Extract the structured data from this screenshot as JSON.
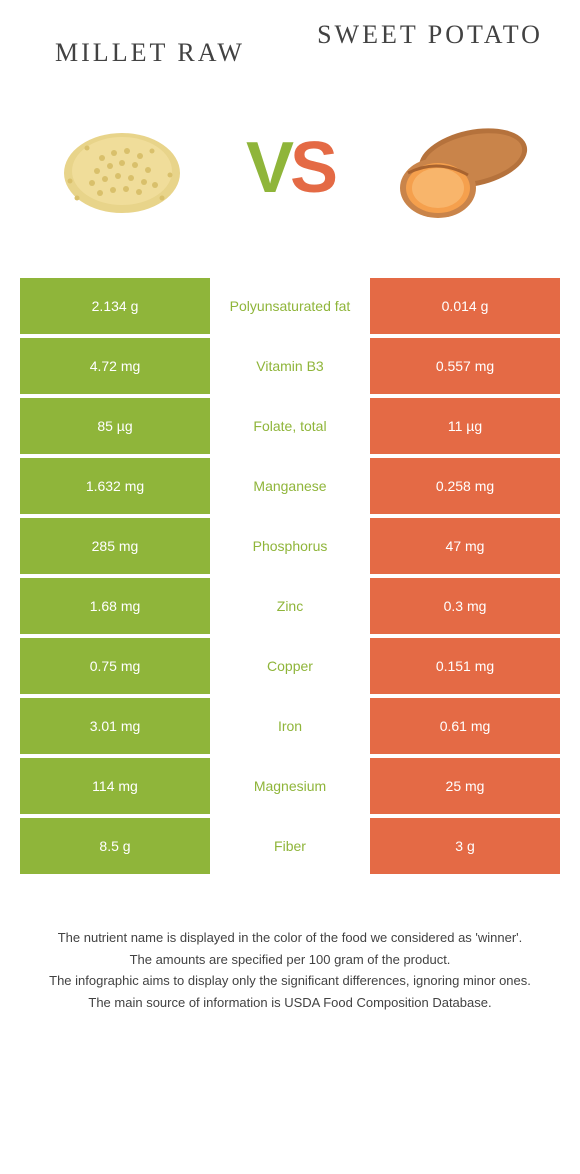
{
  "colors": {
    "green": "#8fb53a",
    "orange": "#e46a45",
    "text": "#424242",
    "white": "#ffffff"
  },
  "foods": {
    "left": {
      "name": "Millet raw",
      "color": "#8fb53a"
    },
    "right": {
      "name": "Sweet potato",
      "color": "#e46a45"
    }
  },
  "vs_label": {
    "v": "V",
    "s": "S"
  },
  "rows": [
    {
      "left": "2.134 g",
      "label": "Polyunsaturated fat",
      "right": "0.014 g",
      "winner": "left"
    },
    {
      "left": "4.72 mg",
      "label": "Vitamin B3",
      "right": "0.557 mg",
      "winner": "left"
    },
    {
      "left": "85 µg",
      "label": "Folate, total",
      "right": "11 µg",
      "winner": "left"
    },
    {
      "left": "1.632 mg",
      "label": "Manganese",
      "right": "0.258 mg",
      "winner": "left"
    },
    {
      "left": "285 mg",
      "label": "Phosphorus",
      "right": "47 mg",
      "winner": "left"
    },
    {
      "left": "1.68 mg",
      "label": "Zinc",
      "right": "0.3 mg",
      "winner": "left"
    },
    {
      "left": "0.75 mg",
      "label": "Copper",
      "right": "0.151 mg",
      "winner": "left"
    },
    {
      "left": "3.01 mg",
      "label": "Iron",
      "right": "0.61 mg",
      "winner": "left"
    },
    {
      "left": "114 mg",
      "label": "Magnesium",
      "right": "25 mg",
      "winner": "left"
    },
    {
      "left": "8.5 g",
      "label": "Fiber",
      "right": "3 g",
      "winner": "left"
    }
  ],
  "footnotes": [
    "The nutrient name is displayed in the color of the food we considered as 'winner'.",
    "The amounts are specified per 100 gram of the product.",
    "The infographic aims to display only the significant differences, ignoring minor ones.",
    "The main source of information is USDA Food Composition Database."
  ]
}
